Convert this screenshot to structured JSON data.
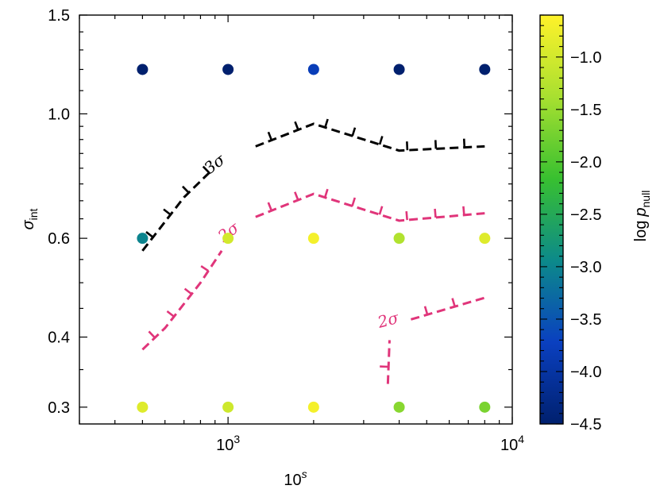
{
  "chart_data": {
    "type": "scatter",
    "xlabel": {
      "base": "10",
      "sup": "s"
    },
    "ylabel": {
      "main": "σ",
      "sub": "int"
    },
    "x_scale": "log",
    "xlim": [
      300,
      10000
    ],
    "ylim": [
      0.28,
      1.5
    ],
    "xticks": [
      {
        "value": 1000,
        "base": "10",
        "exp": "3"
      },
      {
        "value": 10000,
        "base": "10",
        "exp": "4"
      }
    ],
    "yticks": [
      {
        "value": 0.3,
        "label": "0.3"
      },
      {
        "value": 0.4,
        "label": "0.4"
      },
      {
        "value": 0.6,
        "label": "0.6"
      },
      {
        "value": 1.0,
        "label": "1.0"
      },
      {
        "value": 1.5,
        "label": "1.5"
      }
    ],
    "grid": false,
    "colorbar": {
      "label_main": "log",
      "label_italic": "p",
      "label_sub": "null",
      "range": [
        -4.5,
        -0.6
      ],
      "ticks": [
        {
          "value": -1.0,
          "label": "−1.0"
        },
        {
          "value": -1.5,
          "label": "−1.5"
        },
        {
          "value": -2.0,
          "label": "−2.0"
        },
        {
          "value": -2.5,
          "label": "−2.5"
        },
        {
          "value": -3.0,
          "label": "−3.0"
        },
        {
          "value": -3.5,
          "label": "−3.5"
        },
        {
          "value": -4.0,
          "label": "−4.0"
        },
        {
          "value": -4.5,
          "label": "−4.5"
        }
      ],
      "colormap": [
        "#00206e",
        "#0a40c0",
        "#0c8a8a",
        "#38c030",
        "#a8e030",
        "#fff22a"
      ]
    },
    "points": [
      {
        "x": 500,
        "y": 1.2,
        "c": -4.5
      },
      {
        "x": 1000,
        "y": 1.2,
        "c": -4.5
      },
      {
        "x": 2000,
        "y": 1.2,
        "c": -3.8
      },
      {
        "x": 4000,
        "y": 1.2,
        "c": -4.5
      },
      {
        "x": 8000,
        "y": 1.2,
        "c": -4.5
      },
      {
        "x": 500,
        "y": 0.6,
        "c": -3.0
      },
      {
        "x": 1000,
        "y": 0.6,
        "c": -1.0
      },
      {
        "x": 2000,
        "y": 0.6,
        "c": -0.7
      },
      {
        "x": 4000,
        "y": 0.6,
        "c": -1.3
      },
      {
        "x": 8000,
        "y": 0.6,
        "c": -0.9
      },
      {
        "x": 500,
        "y": 0.3,
        "c": -0.9
      },
      {
        "x": 1000,
        "y": 0.3,
        "c": -1.05
      },
      {
        "x": 2000,
        "y": 0.3,
        "c": -0.7
      },
      {
        "x": 4000,
        "y": 0.3,
        "c": -1.6
      },
      {
        "x": 8000,
        "y": 0.3,
        "c": -1.7
      }
    ],
    "contours": [
      {
        "level": "3σ",
        "color": "#000000",
        "segments": [
          [
            [
              500,
              0.57
            ],
            [
              700,
              0.71
            ],
            [
              880,
              0.795
            ]
          ],
          [
            [
              1250,
              0.875
            ],
            [
              2000,
              0.96
            ],
            [
              4000,
              0.86
            ],
            [
              8000,
              0.875
            ]
          ]
        ],
        "label": {
          "text": "3σ",
          "x": 920,
          "y": 0.8,
          "angle": -37
        }
      },
      {
        "level": "2σ",
        "color": "#e0357a",
        "segments": [
          [
            [
              500,
              0.38
            ],
            [
              600,
              0.415
            ],
            [
              800,
              0.5
            ],
            [
              950,
              0.57
            ]
          ],
          [
            [
              1250,
              0.655
            ],
            [
              2000,
              0.72
            ],
            [
              4000,
              0.645
            ],
            [
              8000,
              0.665
            ]
          ],
          [
            [
              3650,
              0.33
            ],
            [
              3700,
              0.395
            ]
          ],
          [
            [
              4400,
              0.43
            ],
            [
              8000,
              0.47
            ]
          ]
        ],
        "label": {
          "text": "2σ",
          "x": 1030,
          "y": 0.605,
          "angle": -37
        },
        "label2": {
          "text": "2σ",
          "x": 3700,
          "y": 0.42,
          "angle": -15
        }
      }
    ]
  }
}
